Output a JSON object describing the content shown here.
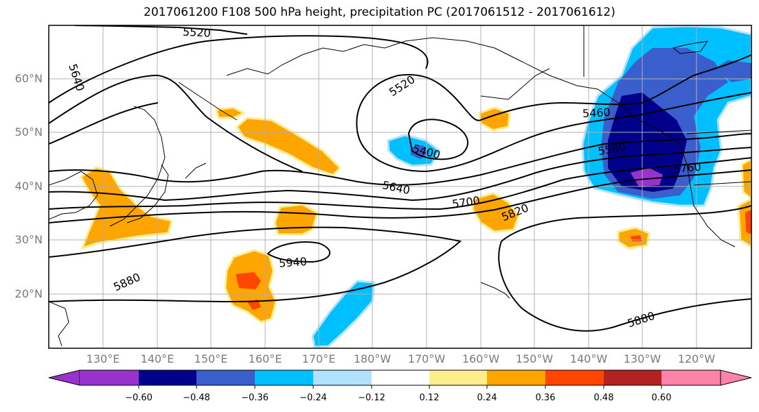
{
  "title": "2017061200 F108 500 hPa height, precipitation PC (2017061512 - 2017061612)",
  "lat_ticks": [
    "60°N",
    "50°N",
    "40°N",
    "30°N",
    "20°N"
  ],
  "lon_ticks": [
    "130°E",
    "140°E",
    "150°E",
    "160°E",
    "170°E",
    "180°W",
    "170°W",
    "160°W",
    "150°W",
    "140°W",
    "130°W",
    "120°W"
  ],
  "contour_labels": [
    "5520",
    "5640",
    "5520",
    "5400",
    "5460",
    "5580",
    "5760",
    "5640",
    "5700",
    "5820",
    "5940",
    "5880",
    "5880"
  ],
  "colorbar": {
    "ticks": [
      "−0.60",
      "−0.48",
      "−0.36",
      "−0.24",
      "−0.12",
      "0.12",
      "0.24",
      "0.36",
      "0.48",
      "0.60"
    ],
    "colors": [
      "#9932cc",
      "#00008b",
      "#3a5fcd",
      "#00bfff",
      "#b0e2ff",
      "#ffffff",
      "#ffec8b",
      "#ffa500",
      "#ff4500",
      "#b22222",
      "#ff82ab"
    ]
  }
}
